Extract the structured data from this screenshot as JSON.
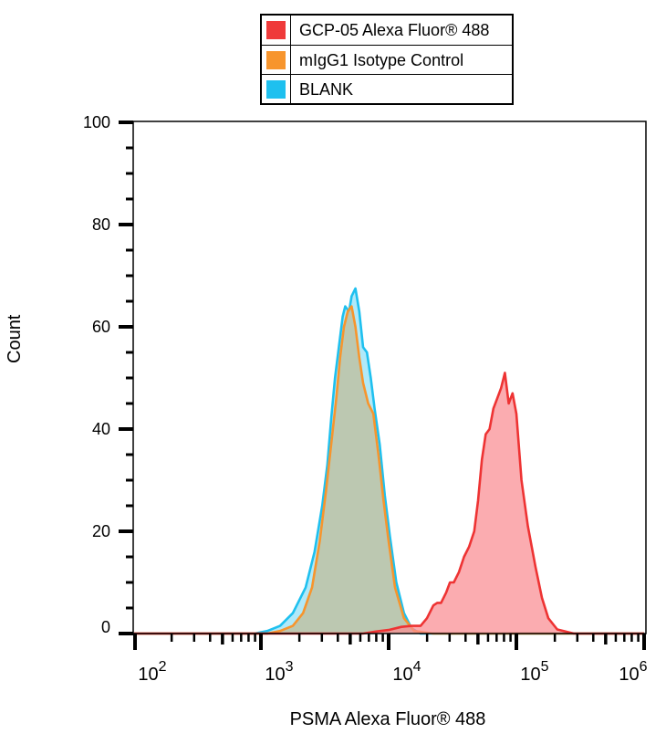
{
  "chart_data": {
    "type": "area",
    "title": "",
    "xlabel": "PSMA Alexa Fluor® 488",
    "ylabel": "Count",
    "xscale": "log",
    "xlim_log10": [
      1.9,
      6.0
    ],
    "ylim": [
      0,
      100
    ],
    "x_tick_labels": [
      {
        "base": "10",
        "exp": "2",
        "log": 2
      },
      {
        "base": "10",
        "exp": "3",
        "log": 3
      },
      {
        "base": "10",
        "exp": "4",
        "log": 4
      },
      {
        "base": "10",
        "exp": "5",
        "log": 5
      },
      {
        "base": "10",
        "exp": "6",
        "log": 6
      }
    ],
    "y_ticks": [
      0,
      20,
      40,
      60,
      80,
      100
    ],
    "grid": false,
    "legend_position": "top-center",
    "series": [
      {
        "name": "BLANK",
        "color": "#1ec0ef",
        "fill": "rgba(30,192,239,0.35)",
        "points_log10_count": [
          [
            1.9,
            0
          ],
          [
            2.95,
            0
          ],
          [
            3.05,
            0.5
          ],
          [
            3.15,
            1.5
          ],
          [
            3.25,
            4
          ],
          [
            3.35,
            9
          ],
          [
            3.42,
            16
          ],
          [
            3.48,
            25
          ],
          [
            3.52,
            33
          ],
          [
            3.55,
            42
          ],
          [
            3.58,
            50
          ],
          [
            3.61,
            56
          ],
          [
            3.64,
            62
          ],
          [
            3.66,
            64
          ],
          [
            3.69,
            63
          ],
          [
            3.71,
            66
          ],
          [
            3.74,
            67.5
          ],
          [
            3.77,
            63
          ],
          [
            3.8,
            56
          ],
          [
            3.83,
            55
          ],
          [
            3.86,
            50
          ],
          [
            3.89,
            44
          ],
          [
            3.93,
            37
          ],
          [
            3.97,
            27
          ],
          [
            4.01,
            19
          ],
          [
            4.06,
            10
          ],
          [
            4.12,
            4
          ],
          [
            4.18,
            1
          ],
          [
            4.25,
            0
          ],
          [
            6.0,
            0
          ]
        ]
      },
      {
        "name": "mIgG1 Isotype Control",
        "color": "#f7952d",
        "fill": "rgba(190,196,168,0.9)",
        "points_log10_count": [
          [
            1.9,
            0
          ],
          [
            3.05,
            0
          ],
          [
            3.15,
            0.5
          ],
          [
            3.25,
            1.5
          ],
          [
            3.33,
            4
          ],
          [
            3.4,
            9
          ],
          [
            3.46,
            18
          ],
          [
            3.51,
            28
          ],
          [
            3.55,
            37
          ],
          [
            3.59,
            46
          ],
          [
            3.62,
            54
          ],
          [
            3.65,
            60
          ],
          [
            3.68,
            63
          ],
          [
            3.71,
            64
          ],
          [
            3.74,
            60
          ],
          [
            3.77,
            54
          ],
          [
            3.8,
            49
          ],
          [
            3.84,
            45
          ],
          [
            3.88,
            43
          ],
          [
            3.92,
            35
          ],
          [
            3.96,
            26
          ],
          [
            4.0,
            18
          ],
          [
            4.05,
            9
          ],
          [
            4.12,
            3
          ],
          [
            4.2,
            0.5
          ],
          [
            4.35,
            0
          ],
          [
            6.0,
            0
          ]
        ]
      },
      {
        "name": "GCP-05 Alexa Fluor® 488",
        "color": "#ee3333",
        "fill": "rgba(250,140,145,0.72)",
        "points_log10_count": [
          [
            1.9,
            0
          ],
          [
            3.8,
            0
          ],
          [
            3.9,
            0.4
          ],
          [
            4.0,
            0.7
          ],
          [
            4.1,
            1.3
          ],
          [
            4.18,
            1.5
          ],
          [
            4.25,
            1.5
          ],
          [
            4.3,
            3
          ],
          [
            4.35,
            5.5
          ],
          [
            4.38,
            6
          ],
          [
            4.41,
            6
          ],
          [
            4.45,
            8
          ],
          [
            4.48,
            10
          ],
          [
            4.51,
            10
          ],
          [
            4.55,
            12
          ],
          [
            4.59,
            15
          ],
          [
            4.63,
            17
          ],
          [
            4.67,
            20
          ],
          [
            4.7,
            26
          ],
          [
            4.73,
            34
          ],
          [
            4.76,
            39
          ],
          [
            4.79,
            40
          ],
          [
            4.82,
            44
          ],
          [
            4.85,
            46
          ],
          [
            4.88,
            48
          ],
          [
            4.91,
            51
          ],
          [
            4.94,
            45
          ],
          [
            4.97,
            47
          ],
          [
            5.0,
            43
          ],
          [
            5.04,
            30
          ],
          [
            5.09,
            21
          ],
          [
            5.15,
            13
          ],
          [
            5.2,
            7
          ],
          [
            5.25,
            3
          ],
          [
            5.32,
            0.8
          ],
          [
            5.45,
            0
          ],
          [
            6.0,
            0
          ]
        ]
      }
    ]
  },
  "legend": {
    "items": [
      {
        "label": "GCP-05 Alexa Fluor® 488",
        "color": "#ef3a3a"
      },
      {
        "label": "mIgG1 Isotype Control",
        "color": "#f7952d"
      },
      {
        "label": "BLANK",
        "color": "#1ec0ef"
      }
    ]
  },
  "axes": {
    "xlabel": "PSMA Alexa Fluor® 488",
    "ylabel": "Count"
  }
}
